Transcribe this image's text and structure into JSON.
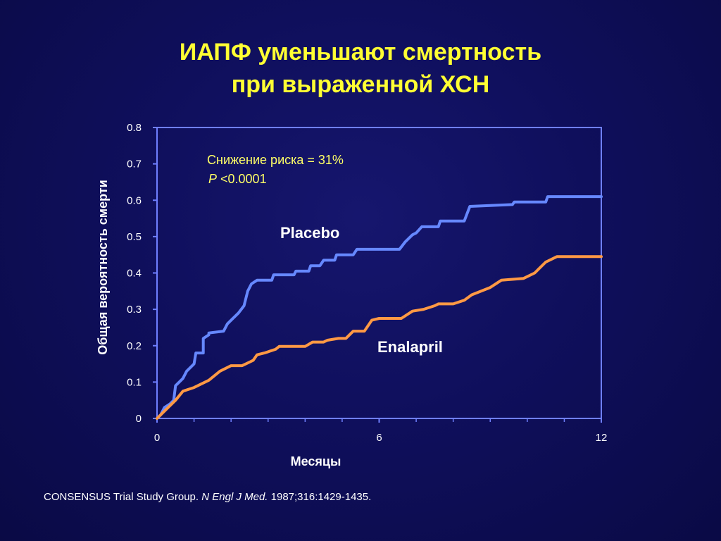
{
  "title": {
    "line1": "ИАПФ уменьшают смертность",
    "line2": "при выраженной ХСН"
  },
  "citation": {
    "part1": "CONSENSUS Trial Study Group. ",
    "journal": "N Engl J Med.",
    "part2": " 1987;316:1429-1435."
  },
  "colors": {
    "background": "#0f0f5c",
    "axis": "#6f7fff",
    "placebo": "#6688ff",
    "enalapril": "#ff9944",
    "title": "#ffff33",
    "annotation": "#ffff66"
  },
  "chart_data": {
    "type": "line",
    "xlabel": "Месяцы",
    "ylabel": "Общая вероятность смерти",
    "xlim": [
      0,
      12
    ],
    "ylim": [
      0,
      0.8
    ],
    "x_ticks": [
      0,
      6,
      12
    ],
    "x_tick_labels": [
      "0",
      "6",
      "12"
    ],
    "x_minor_ticks": [
      1,
      2,
      3,
      4,
      5,
      7,
      8,
      9,
      10,
      11
    ],
    "y_ticks": [
      0,
      0.1,
      0.2,
      0.3,
      0.4,
      0.5,
      0.6,
      0.7,
      0.8
    ],
    "y_tick_labels": [
      "0",
      "0.1",
      "0.2",
      "0.3",
      "0.4",
      "0.5",
      "0.6",
      "0.7",
      "0.8"
    ],
    "grid": false,
    "annotation": {
      "line1": "Снижение риска =  31%",
      "p_italic": "P",
      "p_rest": " <0.0001"
    },
    "series": [
      {
        "name": "Placebo",
        "color": "#6688ff",
        "points": [
          [
            0,
            0
          ],
          [
            0.1,
            0.01
          ],
          [
            0.2,
            0.03
          ],
          [
            0.35,
            0.04
          ],
          [
            0.45,
            0.05
          ],
          [
            0.5,
            0.09
          ],
          [
            0.7,
            0.11
          ],
          [
            0.8,
            0.13
          ],
          [
            1.0,
            0.15
          ],
          [
            1.05,
            0.18
          ],
          [
            1.25,
            0.18
          ],
          [
            1.25,
            0.22
          ],
          [
            1.4,
            0.23
          ],
          [
            1.4,
            0.235
          ],
          [
            1.8,
            0.24
          ],
          [
            1.9,
            0.26
          ],
          [
            2.0,
            0.27
          ],
          [
            2.2,
            0.29
          ],
          [
            2.35,
            0.31
          ],
          [
            2.45,
            0.35
          ],
          [
            2.55,
            0.37
          ],
          [
            2.7,
            0.38
          ],
          [
            3.1,
            0.38
          ],
          [
            3.15,
            0.395
          ],
          [
            3.7,
            0.395
          ],
          [
            3.75,
            0.405
          ],
          [
            4.1,
            0.405
          ],
          [
            4.15,
            0.42
          ],
          [
            4.4,
            0.42
          ],
          [
            4.5,
            0.435
          ],
          [
            4.8,
            0.435
          ],
          [
            4.85,
            0.45
          ],
          [
            5.3,
            0.45
          ],
          [
            5.4,
            0.465
          ],
          [
            6.55,
            0.465
          ],
          [
            6.7,
            0.485
          ],
          [
            6.9,
            0.505
          ],
          [
            7.0,
            0.51
          ],
          [
            7.15,
            0.527
          ],
          [
            7.6,
            0.527
          ],
          [
            7.65,
            0.543
          ],
          [
            8.3,
            0.543
          ],
          [
            8.45,
            0.583
          ],
          [
            9.6,
            0.588
          ],
          [
            9.65,
            0.595
          ],
          [
            10.5,
            0.595
          ],
          [
            10.55,
            0.61
          ],
          [
            12.0,
            0.61
          ]
        ]
      },
      {
        "name": "Enalapril",
        "color": "#ff9944",
        "points": [
          [
            0,
            0
          ],
          [
            0.1,
            0.01
          ],
          [
            0.3,
            0.03
          ],
          [
            0.5,
            0.05
          ],
          [
            0.7,
            0.075
          ],
          [
            1.0,
            0.085
          ],
          [
            1.4,
            0.105
          ],
          [
            1.7,
            0.13
          ],
          [
            2.0,
            0.145
          ],
          [
            2.3,
            0.145
          ],
          [
            2.5,
            0.155
          ],
          [
            2.6,
            0.16
          ],
          [
            2.7,
            0.175
          ],
          [
            2.9,
            0.18
          ],
          [
            3.2,
            0.19
          ],
          [
            3.3,
            0.198
          ],
          [
            4.0,
            0.198
          ],
          [
            4.2,
            0.21
          ],
          [
            4.5,
            0.21
          ],
          [
            4.6,
            0.215
          ],
          [
            4.9,
            0.22
          ],
          [
            5.1,
            0.22
          ],
          [
            5.3,
            0.24
          ],
          [
            5.6,
            0.24
          ],
          [
            5.8,
            0.27
          ],
          [
            6.0,
            0.275
          ],
          [
            6.6,
            0.275
          ],
          [
            6.9,
            0.295
          ],
          [
            7.2,
            0.3
          ],
          [
            7.5,
            0.31
          ],
          [
            7.6,
            0.315
          ],
          [
            8.0,
            0.315
          ],
          [
            8.3,
            0.325
          ],
          [
            8.5,
            0.34
          ],
          [
            9.0,
            0.36
          ],
          [
            9.3,
            0.38
          ],
          [
            9.9,
            0.385
          ],
          [
            10.2,
            0.4
          ],
          [
            10.3,
            0.41
          ],
          [
            10.5,
            0.43
          ],
          [
            10.8,
            0.445
          ],
          [
            12.0,
            0.445
          ]
        ]
      }
    ]
  }
}
